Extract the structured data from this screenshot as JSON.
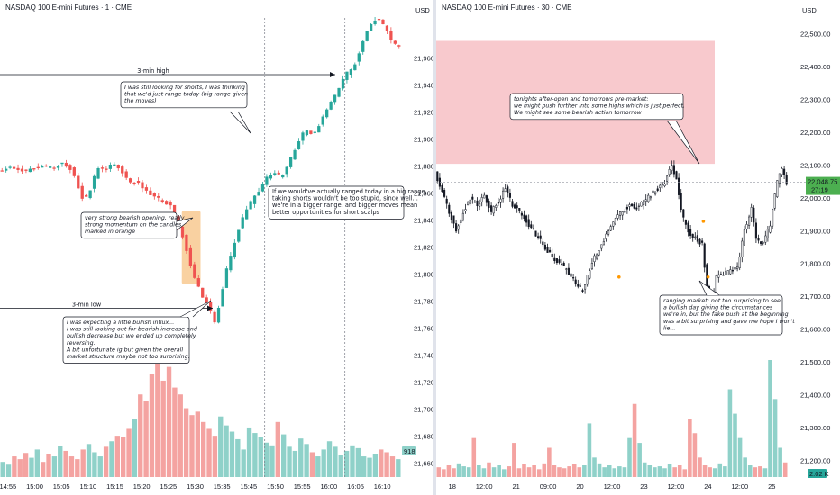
{
  "left_panel": {
    "title": "NASDAQ 100 E-mini Futures · 1 · CME",
    "currency": "USD",
    "volume_label": "918"
  },
  "right_panel": {
    "title": "NASDAQ 100 E-mini Futures · 30 · CME",
    "currency": "USD",
    "price_badge": "22,048.75",
    "timer_badge": "27:19",
    "volume_label": "2.02 K"
  },
  "colors": {
    "up": "#26a69a",
    "down": "#ef5350",
    "vol_up": "#8fd1c9",
    "vol_down": "#f4a3a1",
    "orange_box": "#f7c68a",
    "pink_zone": "#f5b7bc",
    "badge_green": "#4caf50"
  },
  "chart_data": [
    {
      "type": "candlestick",
      "title": "NASDAQ 100 E-mini Futures · 1 · CME",
      "y_unit": "USD",
      "ylim": [
        21650,
        21990
      ],
      "y_ticks": [
        "21,960.00",
        "21,940.00",
        "21,920.00",
        "21,900.00",
        "21,880.00",
        "21,860.00",
        "21,840.00",
        "21,820.00",
        "21,800.00",
        "21,780.00",
        "21,760.00",
        "21,740.00",
        "21,720.00",
        "21,700.00",
        "21,680.00",
        "21,660.00"
      ],
      "x_ticks": [
        "14:55",
        "15:00",
        "15:05",
        "15:10",
        "15:15",
        "15:20",
        "15:25",
        "15:30",
        "15:35",
        "15:45",
        "15:50",
        "15:55",
        "16:00",
        "16:05",
        "16:10"
      ],
      "price_path": [
        [
          0,
          21877
        ],
        [
          10,
          21879
        ],
        [
          20,
          21877
        ],
        [
          30,
          21880
        ],
        [
          40,
          21879
        ],
        [
          48,
          21882
        ],
        [
          56,
          21877
        ],
        [
          60,
          21865
        ],
        [
          64,
          21855
        ],
        [
          68,
          21860
        ],
        [
          72,
          21872
        ],
        [
          76,
          21880
        ],
        [
          80,
          21878
        ],
        [
          86,
          21882
        ],
        [
          90,
          21880
        ],
        [
          96,
          21872
        ],
        [
          100,
          21866
        ],
        [
          104,
          21870
        ],
        [
          108,
          21865
        ],
        [
          112,
          21860
        ],
        [
          116,
          21858
        ],
        [
          122,
          21855
        ],
        [
          130,
          21850
        ],
        [
          134,
          21838
        ],
        [
          138,
          21828
        ],
        [
          142,
          21815
        ],
        [
          146,
          21800
        ],
        [
          150,
          21790
        ],
        [
          154,
          21782
        ],
        [
          158,
          21775
        ],
        [
          162,
          21765
        ],
        [
          166,
          21780
        ],
        [
          170,
          21800
        ],
        [
          176,
          21820
        ],
        [
          182,
          21840
        ],
        [
          188,
          21852
        ],
        [
          194,
          21860
        ],
        [
          200,
          21870
        ],
        [
          206,
          21876
        ],
        [
          212,
          21872
        ],
        [
          218,
          21884
        ],
        [
          224,
          21896
        ],
        [
          230,
          21908
        ],
        [
          236,
          21904
        ],
        [
          242,
          21914
        ],
        [
          248,
          21926
        ],
        [
          254,
          21936
        ],
        [
          260,
          21948
        ],
        [
          266,
          21954
        ],
        [
          272,
          21970
        ],
        [
          278,
          21985
        ],
        [
          284,
          21990
        ],
        [
          290,
          21982
        ],
        [
          296,
          21970
        ]
      ],
      "volume": [
        22,
        18,
        30,
        26,
        35,
        28,
        40,
        22,
        34,
        30,
        45,
        38,
        30,
        26,
        40,
        48,
        36,
        30,
        44,
        52,
        60,
        58,
        70,
        85,
        120,
        110,
        150,
        170,
        140,
        160,
        130,
        120,
        100,
        90,
        95,
        80,
        70,
        60,
        88,
        75,
        66,
        55,
        40,
        72,
        64,
        58,
        50,
        46,
        80,
        62,
        44,
        38,
        56,
        48,
        36,
        30,
        40,
        52,
        44,
        32,
        38,
        46,
        42,
        30,
        28,
        34,
        40,
        36,
        30,
        26
      ]
    },
    {
      "type": "candlestick",
      "title": "NASDAQ 100 E-mini Futures · 30 · CME",
      "y_unit": "USD",
      "ylim": [
        21150,
        22550
      ],
      "y_ticks": [
        "22,500.00",
        "22,400.00",
        "22,300.00",
        "22,200.00",
        "22,100.00",
        "22,000.00",
        "21,900.00",
        "21,800.00",
        "21,700.00",
        "21,600.00",
        "21,500.00",
        "21,400.00",
        "21,300.00",
        "21,200.00"
      ],
      "x_ticks": [
        "18",
        "12:00",
        "21",
        "09:00",
        "20",
        "12:00",
        "23",
        "12:00",
        "24",
        "12:00",
        "25"
      ],
      "last_price": 22048.75,
      "zone": {
        "low": 22105,
        "high": 22480
      },
      "price_path": [
        [
          0,
          22080
        ],
        [
          6,
          22020
        ],
        [
          12,
          21960
        ],
        [
          18,
          21900
        ],
        [
          24,
          21960
        ],
        [
          30,
          22000
        ],
        [
          36,
          21980
        ],
        [
          42,
          22010
        ],
        [
          48,
          21960
        ],
        [
          54,
          21990
        ],
        [
          60,
          22030
        ],
        [
          66,
          21980
        ],
        [
          72,
          21960
        ],
        [
          78,
          21930
        ],
        [
          84,
          21900
        ],
        [
          90,
          21870
        ],
        [
          96,
          21840
        ],
        [
          102,
          21810
        ],
        [
          108,
          21800
        ],
        [
          114,
          21770
        ],
        [
          120,
          21740
        ],
        [
          126,
          21720
        ],
        [
          130,
          21760
        ],
        [
          136,
          21820
        ],
        [
          142,
          21860
        ],
        [
          148,
          21900
        ],
        [
          154,
          21940
        ],
        [
          160,
          21960
        ],
        [
          166,
          21980
        ],
        [
          172,
          21970
        ],
        [
          178,
          21990
        ],
        [
          184,
          22010
        ],
        [
          190,
          22030
        ],
        [
          196,
          22050
        ],
        [
          202,
          22100
        ],
        [
          206,
          22060
        ],
        [
          210,
          21960
        ],
        [
          216,
          21900
        ],
        [
          222,
          21880
        ],
        [
          228,
          21860
        ],
        [
          232,
          21730
        ],
        [
          236,
          21680
        ],
        [
          240,
          21760
        ],
        [
          246,
          21770
        ],
        [
          252,
          21780
        ],
        [
          258,
          21790
        ],
        [
          264,
          21900
        ],
        [
          270,
          21970
        ],
        [
          274,
          21880
        ],
        [
          280,
          21860
        ],
        [
          286,
          21920
        ],
        [
          292,
          22050
        ],
        [
          296,
          22095
        ],
        [
          300,
          22048
        ]
      ],
      "volume": [
        10,
        8,
        12,
        9,
        14,
        11,
        10,
        40,
        12,
        9,
        15,
        10,
        12,
        8,
        11,
        35,
        9,
        13,
        10,
        12,
        8,
        14,
        30,
        12,
        10,
        9,
        11,
        13,
        10,
        12,
        55,
        20,
        14,
        10,
        12,
        9,
        11,
        10,
        40,
        75,
        35,
        15,
        12,
        10,
        11,
        9,
        13,
        10,
        12,
        8,
        60,
        45,
        20,
        12,
        10,
        9,
        14,
        11,
        90,
        65,
        40,
        20,
        12,
        10,
        11,
        9,
        120,
        80,
        30,
        15
      ]
    }
  ],
  "annotations": {
    "three_min_high": "3-min high",
    "three_min_low": "3-min low",
    "shorts_note": [
      "I was still looking for shorts, I was thinking",
      "that we'd just range today (big range given",
      "the moves)"
    ],
    "bearish_open": [
      "very strong bearish opening, really",
      "strong momentum on the candles",
      "marked in orange"
    ],
    "bullish_influx": [
      "I was expecting a little bullish influx...",
      "I was still looking out for bearish increase and",
      "bullish decrease but we ended up completely",
      "reversing.",
      "A bit unfortunate ig but given the overall",
      "market structure maybe not too surprising."
    ],
    "ranged_note": [
      "If we would've actually ranged today in a big range,",
      "taking shorts wouldn't be too stupid, since well...",
      "we're in a bigger range, and bigger moves mean",
      "better opportunities for short scalps"
    ],
    "tonight_note": [
      "tonights after-open and tomorrows pre-market:",
      "we might push further into some highs which is just perfect.",
      "We might see some bearish action tomorrow"
    ],
    "ranging_note": [
      "ranging market: not too surprising to see",
      "a bullish day giving the circumstances",
      "we're in, but the fake push at the beginning",
      "was a bit surprising and gave me hope I won't",
      "lie..."
    ]
  }
}
